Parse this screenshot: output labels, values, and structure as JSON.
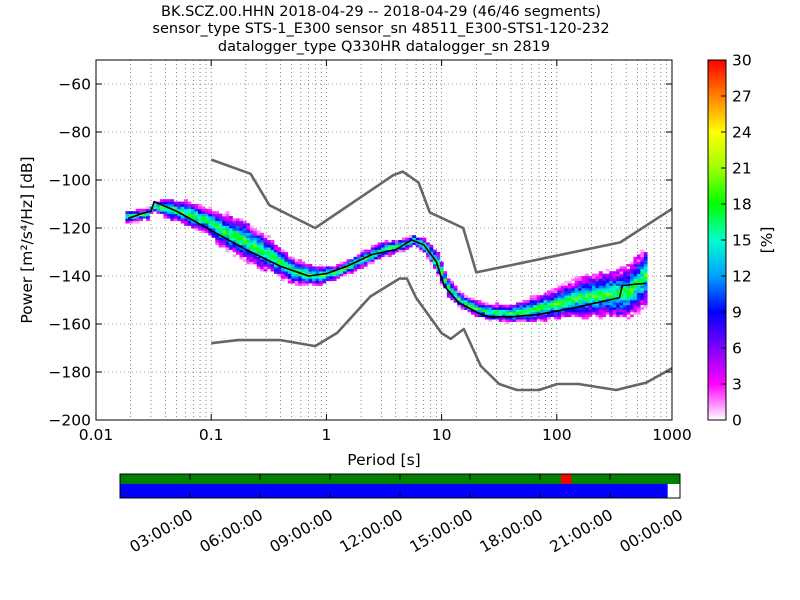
{
  "chart_data": {
    "type": "heatmap",
    "title_lines": [
      "BK.SCZ.00.HHN   2018-04-29 -- 2018-04-29  (46/46 segments)",
      "sensor_type STS-1_E300 sensor_sn 48511_E300-STS1-120-232",
      "datalogger_type Q330HR datalogger_sn 2819"
    ],
    "xlabel": "Period [s]",
    "ylabel": "Power [m²/s⁴/Hz] [dB]",
    "xscale": "log",
    "xlim": [
      0.01,
      1000
    ],
    "ylim": [
      -200,
      -50
    ],
    "xticks": [
      {
        "v": 0.01,
        "label": "0.01"
      },
      {
        "v": 0.1,
        "label": "0.1"
      },
      {
        "v": 1,
        "label": "1"
      },
      {
        "v": 10,
        "label": "10"
      },
      {
        "v": 100,
        "label": "100"
      },
      {
        "v": 1000,
        "label": "1000"
      }
    ],
    "yticks": [
      {
        "v": -60,
        "label": "−60"
      },
      {
        "v": -80,
        "label": "−80"
      },
      {
        "v": -100,
        "label": "−100"
      },
      {
        "v": -120,
        "label": "−120"
      },
      {
        "v": -140,
        "label": "−140"
      },
      {
        "v": -160,
        "label": "−160"
      },
      {
        "v": -180,
        "label": "−180"
      },
      {
        "v": -200,
        "label": "−200"
      }
    ],
    "grid": true,
    "noise_models": {
      "color": "#666666",
      "high": [
        [
          0.1,
          -91.5
        ],
        [
          0.22,
          -97.4
        ],
        [
          0.32,
          -110.5
        ],
        [
          0.8,
          -120
        ],
        [
          3.8,
          -98
        ],
        [
          4.6,
          -96.5
        ],
        [
          6.3,
          -101
        ],
        [
          7.9,
          -113.5
        ],
        [
          15.4,
          -120
        ],
        [
          20,
          -138.5
        ],
        [
          354.8,
          -126
        ],
        [
          1000,
          -112
        ]
      ],
      "low": [
        [
          0.1,
          -168
        ],
        [
          0.17,
          -166.7
        ],
        [
          0.4,
          -166.7
        ],
        [
          0.8,
          -169.2
        ],
        [
          1.24,
          -163.7
        ],
        [
          2.4,
          -148.6
        ],
        [
          4.3,
          -141.1
        ],
        [
          5,
          -141.1
        ],
        [
          6,
          -149
        ],
        [
          10,
          -163.8
        ],
        [
          12,
          -166.2
        ],
        [
          15.6,
          -162.1
        ],
        [
          21.9,
          -177.5
        ],
        [
          31.6,
          -185
        ],
        [
          45,
          -187.5
        ],
        [
          70,
          -187.5
        ],
        [
          101,
          -185
        ],
        [
          154,
          -185
        ],
        [
          328,
          -187.5
        ],
        [
          600,
          -184.4
        ],
        [
          1000,
          -178.4
        ]
      ]
    },
    "mode_line": [
      [
        0.019,
        -116
      ],
      [
        0.025,
        -114
      ],
      [
        0.03,
        -113
      ],
      [
        0.032,
        -109
      ],
      [
        0.05,
        -113
      ],
      [
        0.1,
        -121
      ],
      [
        0.2,
        -129
      ],
      [
        0.4,
        -136
      ],
      [
        0.7,
        -140
      ],
      [
        1,
        -139
      ],
      [
        1.5,
        -136
      ],
      [
        2.5,
        -131
      ],
      [
        4,
        -129
      ],
      [
        5.5,
        -125
      ],
      [
        7,
        -127
      ],
      [
        9,
        -134
      ],
      [
        10.5,
        -144
      ],
      [
        14,
        -151
      ],
      [
        20,
        -155
      ],
      [
        25,
        -157
      ],
      [
        40,
        -157
      ],
      [
        70,
        -156
      ],
      [
        150,
        -153
      ],
      [
        350,
        -149
      ],
      [
        370,
        -144
      ],
      [
        600,
        -143
      ]
    ],
    "psd_cloud": {
      "dx_log": 0.03,
      "db_step": 1,
      "columns": [
        [
          0.018,
          -118.5,
          -113
        ],
        [
          0.028,
          -117,
          -112
        ],
        [
          0.03,
          -113,
          -110
        ],
        [
          0.04,
          -117,
          -108
        ],
        [
          0.06,
          -120,
          -109
        ],
        [
          0.09,
          -123,
          -112
        ],
        [
          0.12,
          -129,
          -114
        ],
        [
          0.18,
          -134,
          -116
        ],
        [
          0.3,
          -139,
          -124
        ],
        [
          0.5,
          -144,
          -133
        ],
        [
          0.8,
          -145,
          -136
        ],
        [
          1.2,
          -142,
          -136
        ],
        [
          2,
          -137,
          -130
        ],
        [
          3,
          -133,
          -126
        ],
        [
          4.5,
          -130,
          -125
        ],
        [
          5.5,
          -128,
          -123
        ],
        [
          7,
          -131,
          -125
        ],
        [
          9,
          -141,
          -130
        ],
        [
          11,
          -149,
          -141
        ],
        [
          14,
          -154,
          -147
        ],
        [
          18,
          -157,
          -150
        ],
        [
          25,
          -159,
          -152
        ],
        [
          40,
          -160,
          -152
        ],
        [
          60,
          -160,
          -149
        ],
        [
          90,
          -159,
          -146
        ],
        [
          150,
          -158,
          -141
        ],
        [
          250,
          -158,
          -138
        ],
        [
          400,
          -159,
          -136
        ],
        [
          600,
          -152,
          -127
        ]
      ]
    },
    "colorbar": {
      "label": "[%]",
      "min": 0,
      "max": 30,
      "ticks": [
        "0",
        "3",
        "6",
        "9",
        "12",
        "15",
        "18",
        "21",
        "24",
        "27",
        "30"
      ],
      "stops": [
        "#ffffff",
        "#ff00ff",
        "#7f00ff",
        "#0000ff",
        "#00a0ff",
        "#00ffcc",
        "#00ff00",
        "#a0ff00",
        "#ffff00",
        "#ff8000",
        "#ff0000"
      ]
    },
    "timeline": {
      "tick_labels": [
        "03:00:00",
        "06:00:00",
        "09:00:00",
        "12:00:00",
        "15:00:00",
        "18:00:00",
        "21:00:00",
        "00:00:00"
      ],
      "data_color": "#008000",
      "gap_color": "#ff0000",
      "used_color": "#0000ff",
      "data_coverage": 1.0,
      "gap_position": 0.788,
      "used_coverage": 0.978
    }
  }
}
